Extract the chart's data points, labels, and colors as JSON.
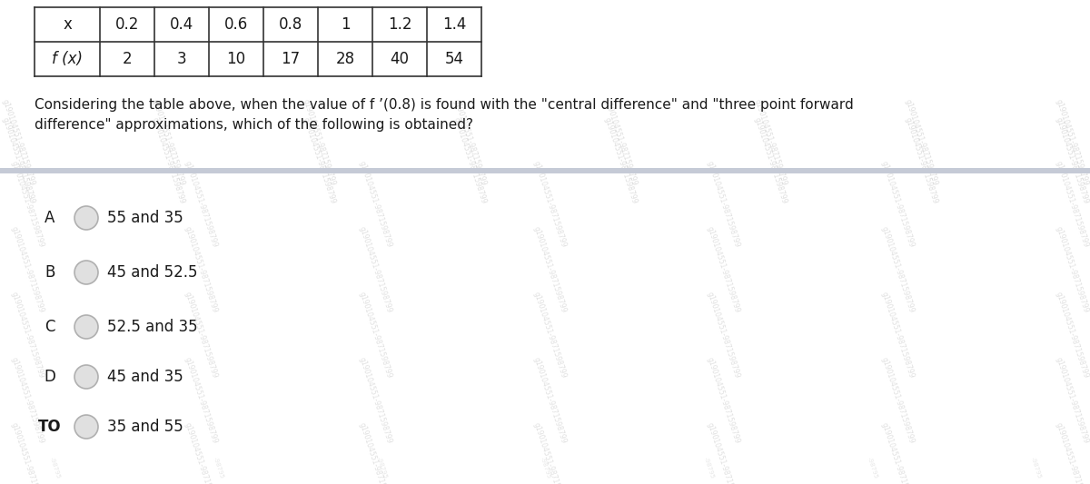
{
  "table_x_label": "x",
  "table_fx_label": "f (x)",
  "table_x_values": [
    "0.2",
    "0.4",
    "0.6",
    "0.8",
    "1",
    "1.2",
    "1.4"
  ],
  "table_fx_values": [
    "2",
    "3",
    "10",
    "17",
    "28",
    "40",
    "54"
  ],
  "question_line1": "Considering the table above, when the value of f ’(0.8) is found with the \"central difference\" and \"three point forward",
  "question_line2": "difference\" approximations, which of the following is obtained?",
  "options": [
    {
      "label": "A",
      "text": "55 and 35"
    },
    {
      "label": "B",
      "text": "45 and 52.5"
    },
    {
      "label": "C",
      "text": "52.5 and 35"
    },
    {
      "label": "D",
      "text": "45 and 35"
    },
    {
      "label": "TO",
      "text": "35 and 55"
    }
  ],
  "watermark_text": "g190104551-9871598799",
  "bg_color": "#ffffff",
  "table_border_color": "#333333",
  "separator_color": "#c5cad6",
  "text_color": "#1a1a1a",
  "wm_color": "#d0d0d0",
  "fig_width": 12.0,
  "fig_height": 5.33,
  "dpi": 100
}
